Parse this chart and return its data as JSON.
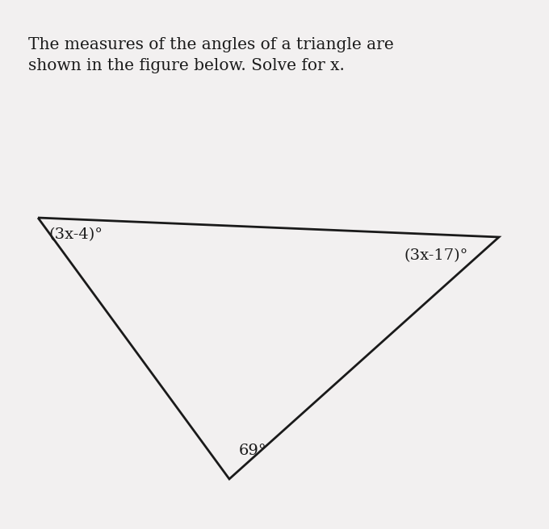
{
  "title_text": "The measures of the angles of a triangle are\nshown in the figure below. Solve for x.",
  "title_fontsize": 14.5,
  "bg_color": "#f2f0f0",
  "line_color": "#1a1a1a",
  "line_width": 2.0,
  "angle_top_left_label": "(3x-4)°",
  "angle_top_right_label": "(3x-17)°",
  "angle_bottom_label": "69°",
  "label_fontsize": 14.0,
  "label_color": "#1a1a1a",
  "title_color": "#1a1a1a"
}
